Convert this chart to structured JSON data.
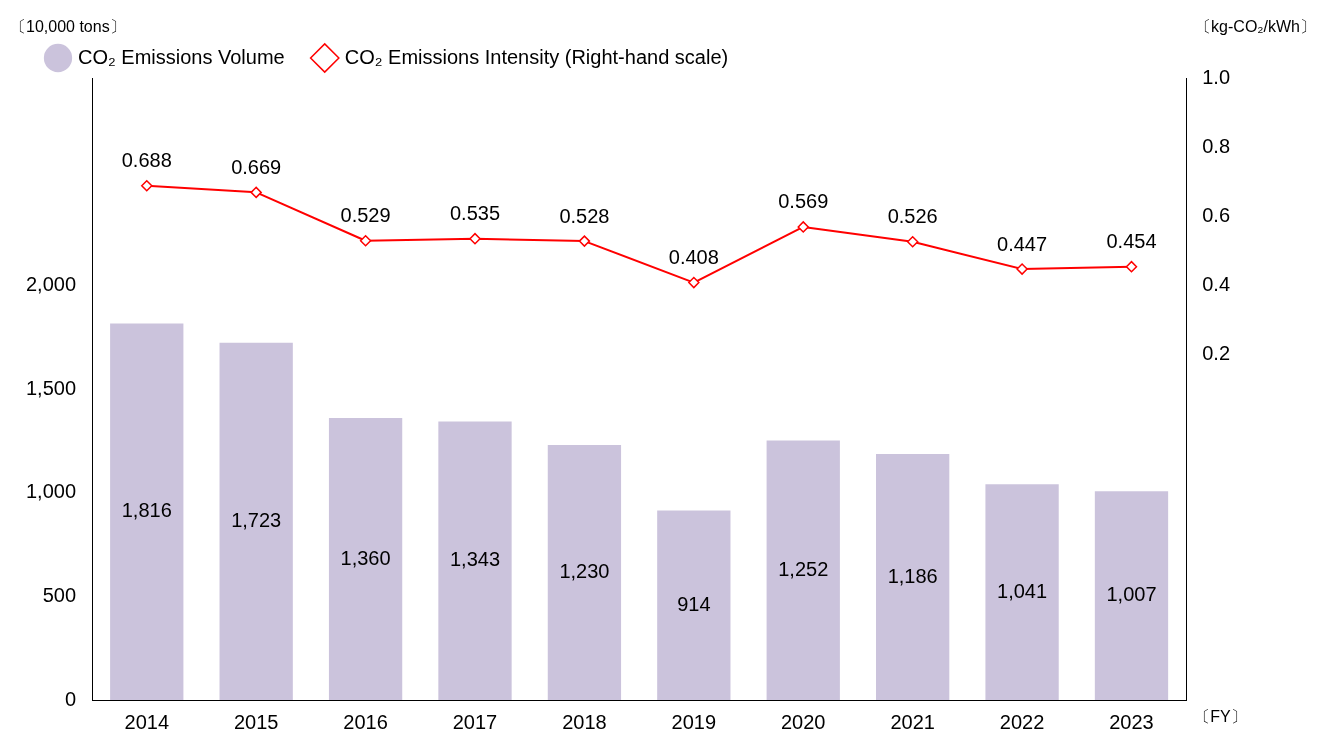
{
  "chart_data": {
    "type": "bar",
    "ylabel": "〔10,000 tons〕",
    "y2label": "〔kg-CO₂/kWh〕",
    "xlabel": "〔FY〕",
    "categories": [
      "2014",
      "2015",
      "2016",
      "2017",
      "2018",
      "2019",
      "2020",
      "2021",
      "2022",
      "2023"
    ],
    "series": [
      {
        "name": "CO₂ Emissions Volume",
        "color": "#cbc3dc",
        "values": [
          1816,
          1723,
          1360,
          1343,
          1230,
          914,
          1252,
          1186,
          1041,
          1007
        ],
        "value_labels": [
          "1,816",
          "1,723",
          "1,360",
          "1,343",
          "1,230",
          "914",
          "1,252",
          "1,186",
          "1,041",
          "1,007"
        ]
      },
      {
        "name": "CO₂ Emissions Intensity (Right-hand scale)",
        "type": "line",
        "axis": "y2",
        "color": "#ff0000",
        "marker": "diamond",
        "values": [
          0.688,
          0.669,
          0.529,
          0.535,
          0.528,
          0.408,
          0.569,
          0.526,
          0.447,
          0.454
        ]
      }
    ],
    "ylim": [
      0,
      3000
    ],
    "yticks": [
      0,
      500,
      {
        "value": 1000,
        "label": "1,000"
      },
      {
        "value": 1500,
        "label": "1,500"
      },
      {
        "value": 2000,
        "label": "2,000"
      }
    ],
    "y2lim": [
      -0.8,
      1.0
    ],
    "y2ticks": [
      {
        "value": 0.2,
        "label": "0.2"
      },
      {
        "value": 0.4,
        "label": "0.4"
      },
      {
        "value": 0.6,
        "label": "0.6"
      },
      {
        "value": 0.8,
        "label": "0.8"
      },
      {
        "value": 1.0,
        "label": "1.0"
      }
    ],
    "data_labels": true,
    "grid": false,
    "legend": "top left"
  }
}
